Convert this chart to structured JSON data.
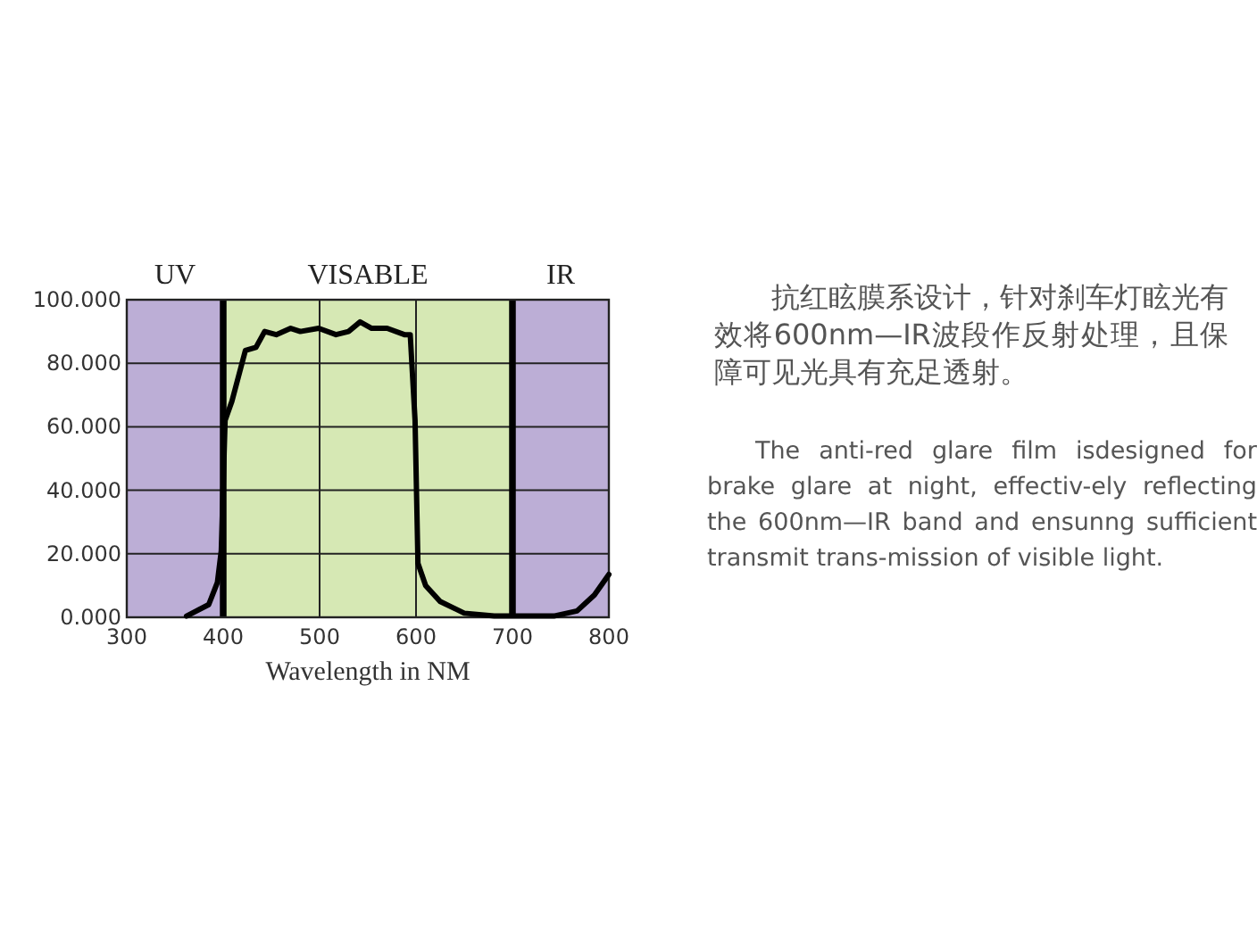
{
  "chart_data": {
    "type": "line",
    "xlabel": "Wavelength in NM",
    "x": [
      362,
      385,
      394,
      398,
      402,
      409,
      423,
      434,
      443,
      455,
      470,
      480,
      499,
      517,
      530,
      542,
      554,
      570,
      588,
      594,
      599,
      602,
      610,
      625,
      650,
      681,
      743,
      767,
      785,
      800
    ],
    "series": [
      {
        "color": "#000000",
        "values": [
          0.4,
          4,
          11,
          21,
          62,
          68,
          84,
          85,
          90,
          89,
          91,
          90,
          91,
          89,
          90,
          93,
          91,
          91,
          89,
          89,
          62,
          17,
          10,
          5,
          1.3,
          0.4,
          0.4,
          2,
          7,
          13.5
        ]
      }
    ],
    "xlim": [
      300,
      800
    ],
    "ylim": [
      0,
      100
    ],
    "xticks": [
      300,
      400,
      500,
      600,
      700,
      800
    ],
    "yticks": [
      {
        "value": 0,
        "label": "0.000"
      },
      {
        "value": 20,
        "label": "20.000"
      },
      {
        "value": 40,
        "label": "40.000"
      },
      {
        "value": 60,
        "label": "60.000"
      },
      {
        "value": 80,
        "label": "80.000"
      },
      {
        "value": 100,
        "label": "100.000"
      }
    ],
    "grid": true,
    "marker": "none",
    "line_style": "solid",
    "bands": [
      {
        "axis": "x",
        "from": 300,
        "to": 400,
        "label": "UV",
        "color": "#bcaed6"
      },
      {
        "axis": "x",
        "from": 400,
        "to": 700,
        "label": "VISABLE",
        "color": "#d6e8b4"
      },
      {
        "axis": "x",
        "from": 700,
        "to": 800,
        "label": "IR",
        "color": "#bcaed6"
      }
    ],
    "annotations": [
      "抗红眩膜系设计，针对刹车灯眩光有效将600nm—IR波段作反射处理，且保障可见光具有充足透射。",
      "The anti-red glare film isdesigned for brake glare at night, effectiv-ely reflecting the 600nm—IR band and ensunng sufficient transmit trans-mission of visible light."
    ]
  }
}
